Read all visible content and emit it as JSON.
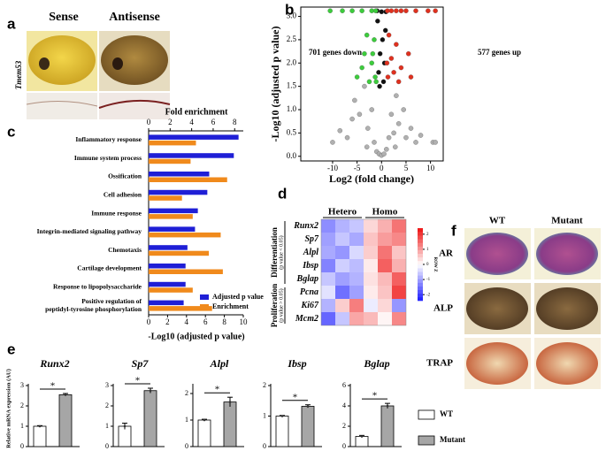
{
  "panel_labels": [
    "a",
    "b",
    "c",
    "d",
    "e",
    "f"
  ],
  "panel_a": {
    "columns": [
      "Sense",
      "Antisense"
    ],
    "gene": "Tmem53"
  },
  "panel_f": {
    "columns": [
      "WT",
      "Mutant"
    ],
    "rows": [
      "AR",
      "ALP",
      "TRAP"
    ]
  },
  "panel_e": {
    "ylabel": "Relative mRNA expression (AU)",
    "legend": [
      {
        "name": "WT",
        "color": "#ffffff"
      },
      {
        "name": "Mutant",
        "color": "#a6a6a6"
      }
    ]
  },
  "chart_data": [
    {
      "type": "scatter",
      "xlabel": "Log2 (fold change)",
      "ylabel": "-Log10 (adjusted p value)",
      "annotations": [
        {
          "text": "701 genes down",
          "color": "#3aa65a"
        },
        {
          "text": "577 genes up",
          "color": "#d04a2a"
        }
      ],
      "xlim": [
        -16.5,
        12.6
      ],
      "xticks": [
        -10,
        -5,
        0,
        5,
        10
      ],
      "ylim": [
        -0.1,
        3.2
      ],
      "yticks": [
        {
          "value": 0,
          "label": "0.0"
        },
        0.5,
        {
          "value": 1,
          "label": "1.0"
        },
        1.5,
        {
          "value": 2,
          "label": "2.0"
        },
        2.5,
        {
          "value": 3,
          "label": "3.0"
        }
      ],
      "series": [
        {
          "color": "#b0b0b0",
          "x": [
            -10,
            -8.5,
            -7,
            -6,
            -5.5,
            -4.5,
            -3.5,
            -2.8,
            -2,
            -1.5,
            -1,
            -0.5,
            0,
            0.5,
            1,
            1.5,
            2,
            2.5,
            3,
            3.5,
            4.5,
            5,
            6,
            7,
            8,
            10.5,
            11,
            -3,
            2.8
          ],
          "values": [
            0.3,
            0.55,
            0.4,
            0.8,
            1.2,
            0.9,
            1.5,
            0.6,
            1.0,
            0.3,
            0.1,
            0.05,
            0.02,
            0.05,
            0.15,
            0.4,
            0.9,
            0.5,
            1.3,
            0.7,
            1.0,
            0.4,
            0.6,
            0.3,
            0.45,
            0.3,
            0.3,
            0.2,
            0.2
          ]
        },
        {
          "color": "#111111",
          "x": [
            -0.6,
            -0.3,
            0.2,
            0.6,
            0.8,
            -0.8,
            0,
            0.4,
            -0.4,
            0.9,
            -0.9
          ],
          "values": [
            1.8,
            2.2,
            2.5,
            2.0,
            2.7,
            2.9,
            3.1,
            1.6,
            1.5,
            3.1,
            3.12
          ]
        },
        {
          "color": "#3ccc3c",
          "x": [
            -10.5,
            -8,
            -6,
            -4,
            -2,
            -1.2,
            -1.5,
            -2,
            -1.3,
            -3,
            -2.5,
            -4,
            -1.8,
            -5,
            -1.1,
            -3.5
          ],
          "values": [
            3.12,
            3.12,
            3.12,
            3.12,
            3.12,
            3.12,
            2.5,
            2.0,
            1.7,
            2.6,
            1.6,
            1.9,
            2.2,
            1.7,
            1.6,
            2.2
          ]
        },
        {
          "color": "#e0301e",
          "x": [
            1.2,
            2,
            3,
            4,
            5,
            7,
            9.5,
            11,
            1.5,
            2,
            1.3,
            3,
            2.5,
            4,
            5.5,
            6,
            1.1,
            3.5
          ],
          "values": [
            3.12,
            3.12,
            3.12,
            3.12,
            3.12,
            3.12,
            3.12,
            3.12,
            2.6,
            2.1,
            1.7,
            2.4,
            1.8,
            1.9,
            2.2,
            1.7,
            2.0,
            1.6
          ]
        }
      ]
    },
    {
      "type": "hbar",
      "xlabel": "-Log10 (adjusted p value)",
      "x2label": "Fold enrichment",
      "categories": [
        "Inflammatory response",
        "Immune system process",
        "Ossification",
        "Cell adhesion",
        "Immune response",
        "Integrin-mediated signaling pathway",
        "Chemotaxis",
        "Cartilage development",
        "Response to lipopolysaccharide",
        "Positive regulation of peptidyl-tyrosine phosphorylation"
      ],
      "xlim": [
        0,
        10
      ],
      "xticks": [
        0,
        2,
        4,
        6,
        8,
        10
      ],
      "x2lim": [
        0,
        8.8
      ],
      "x2ticks": [
        0,
        2,
        4,
        6,
        8
      ],
      "series": [
        {
          "name": "Adjusted p value",
          "color": "#1f1fd6",
          "values": [
            9.5,
            9.0,
            6.4,
            6.2,
            5.2,
            4.9,
            4.1,
            3.9,
            3.9,
            3.7
          ]
        },
        {
          "name": "Enrichment",
          "color": "#f08a1c",
          "axis": "x2",
          "values": [
            4.4,
            3.9,
            7.3,
            3.1,
            4.1,
            6.7,
            5.6,
            6.9,
            4.1,
            5.9
          ]
        }
      ]
    },
    {
      "type": "heatmap",
      "columns_groups": [
        "Hetero",
        "Homo"
      ],
      "row_groups": [
        {
          "name": "Differentiation",
          "note": "(p value < 0.05)"
        },
        {
          "name": "Proliferation",
          "note": "(p value > 0.05)"
        }
      ],
      "rows": [
        "Runx2",
        "Sp7",
        "Alpl",
        "Ibsp",
        "Bglap",
        "Pcna",
        "Ki67",
        "Mcm2"
      ],
      "colorbar_title": "ROW Z",
      "zlim": [
        -2.4,
        2.4
      ],
      "zticks": [
        2,
        1,
        0,
        -1,
        -2
      ],
      "colorscale": [
        "#1a1aff",
        "#ffffff",
        "#ee1111"
      ],
      "values": [
        [
          -1.2,
          -0.8,
          -0.6,
          0.4,
          0.8,
          1.4
        ],
        [
          -1.0,
          -0.6,
          -0.9,
          0.6,
          1.0,
          1.2
        ],
        [
          -0.9,
          -1.1,
          -0.4,
          0.5,
          1.4,
          0.6
        ],
        [
          -1.3,
          -0.5,
          -0.7,
          0.2,
          1.6,
          0.8
        ],
        [
          -0.6,
          -1.0,
          -0.8,
          0.3,
          0.7,
          1.6
        ],
        [
          -0.3,
          -1.5,
          -1.0,
          0.2,
          0.6,
          1.9
        ],
        [
          -0.8,
          0.5,
          1.3,
          -0.2,
          0.4,
          -1.1
        ],
        [
          -1.6,
          -0.6,
          0.9,
          0.7,
          0.1,
          1.2
        ]
      ]
    },
    {
      "type": "errbar",
      "title": "Runx2",
      "values": [
        1,
        2.55
      ],
      "errors": [
        0.03,
        0.06
      ],
      "ylim": [
        0,
        3
      ],
      "yticks": [
        0,
        1,
        2,
        3
      ],
      "annotation": "*"
    },
    {
      "type": "errbar",
      "title": "Sp7",
      "values": [
        1,
        2.75
      ],
      "errors": [
        0.15,
        0.12
      ],
      "ylim": [
        0,
        3
      ],
      "yticks": [
        0,
        1,
        2,
        3
      ],
      "annotation": "*"
    },
    {
      "type": "errbar",
      "title": "Alpl",
      "values": [
        1,
        1.68
      ],
      "errors": [
        0.03,
        0.18
      ],
      "ylim": [
        0,
        2.3
      ],
      "yticks": [
        0,
        1,
        2
      ],
      "annotation": "*"
    },
    {
      "type": "errbar",
      "title": "Ibsp",
      "values": [
        1,
        1.32
      ],
      "errors": [
        0.02,
        0.05
      ],
      "ylim": [
        0,
        2
      ],
      "yticks": [
        0,
        1,
        2
      ],
      "annotation": "*"
    },
    {
      "type": "errbar",
      "title": "Bglap",
      "values": [
        1,
        4.0
      ],
      "errors": [
        0.1,
        0.25
      ],
      "ylim": [
        0,
        6
      ],
      "yticks": [
        0,
        2,
        4,
        6
      ],
      "annotation": "*"
    }
  ]
}
